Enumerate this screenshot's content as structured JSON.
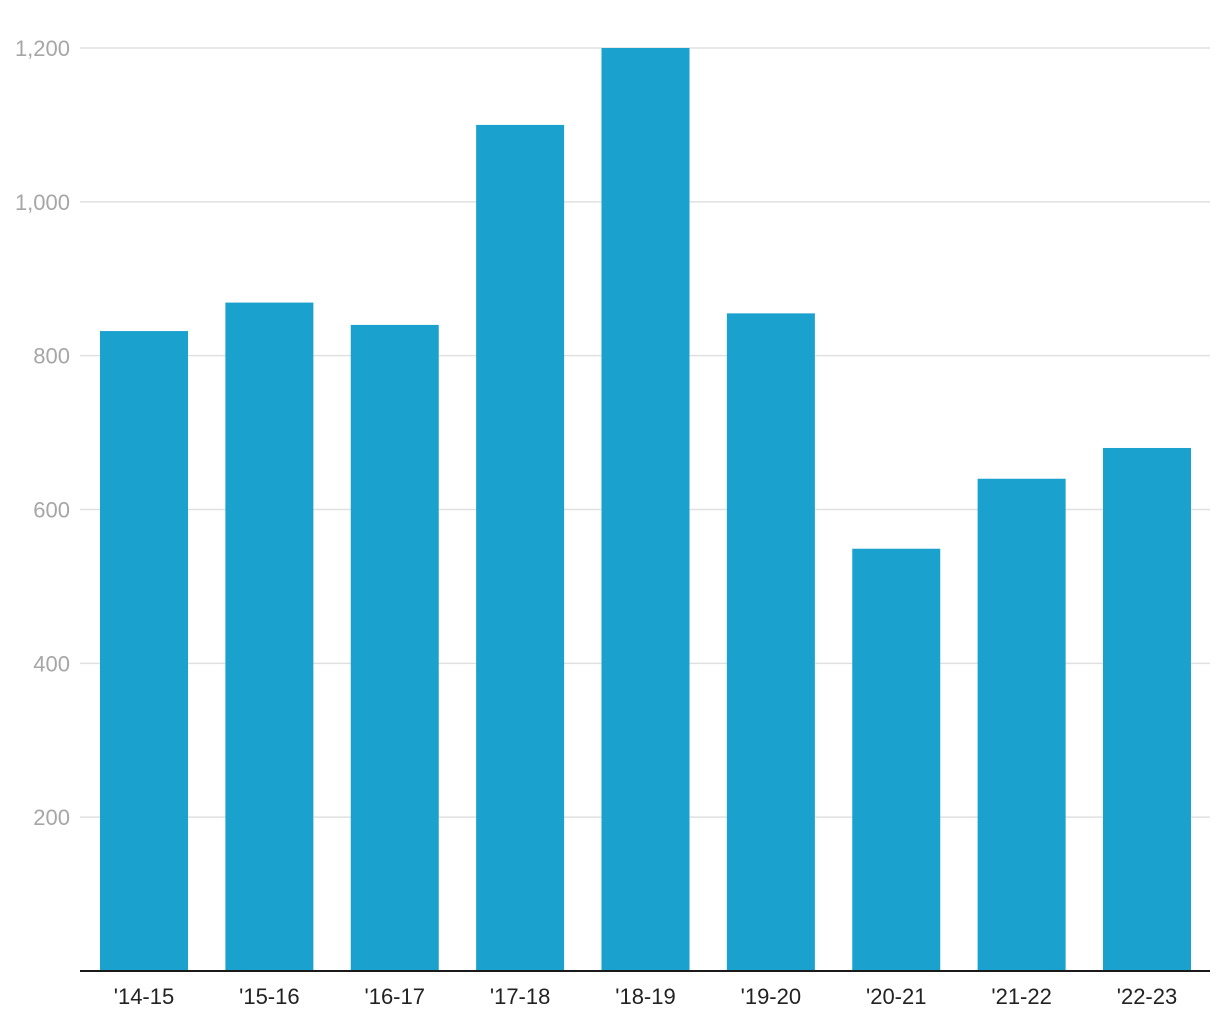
{
  "chart_data": {
    "type": "bar",
    "title": "",
    "xlabel": "",
    "ylabel": "",
    "categories": [
      "'14-15",
      "'15-16",
      "'16-17",
      "'17-18",
      "'18-19",
      "'19-20",
      "'20-21",
      "'21-22",
      "'22-23"
    ],
    "values": [
      832,
      869,
      840,
      1100,
      1200,
      855,
      549,
      640,
      680
    ],
    "ylim": [
      0,
      1200
    ],
    "yticks": [
      200,
      400,
      600,
      800,
      1000,
      1200
    ],
    "ytick_labels": [
      "200",
      "400",
      "600",
      "800",
      "1,000",
      "1,200"
    ],
    "grid": true,
    "legend": "none",
    "colors": {
      "bar": "#1aa1cd"
    }
  }
}
